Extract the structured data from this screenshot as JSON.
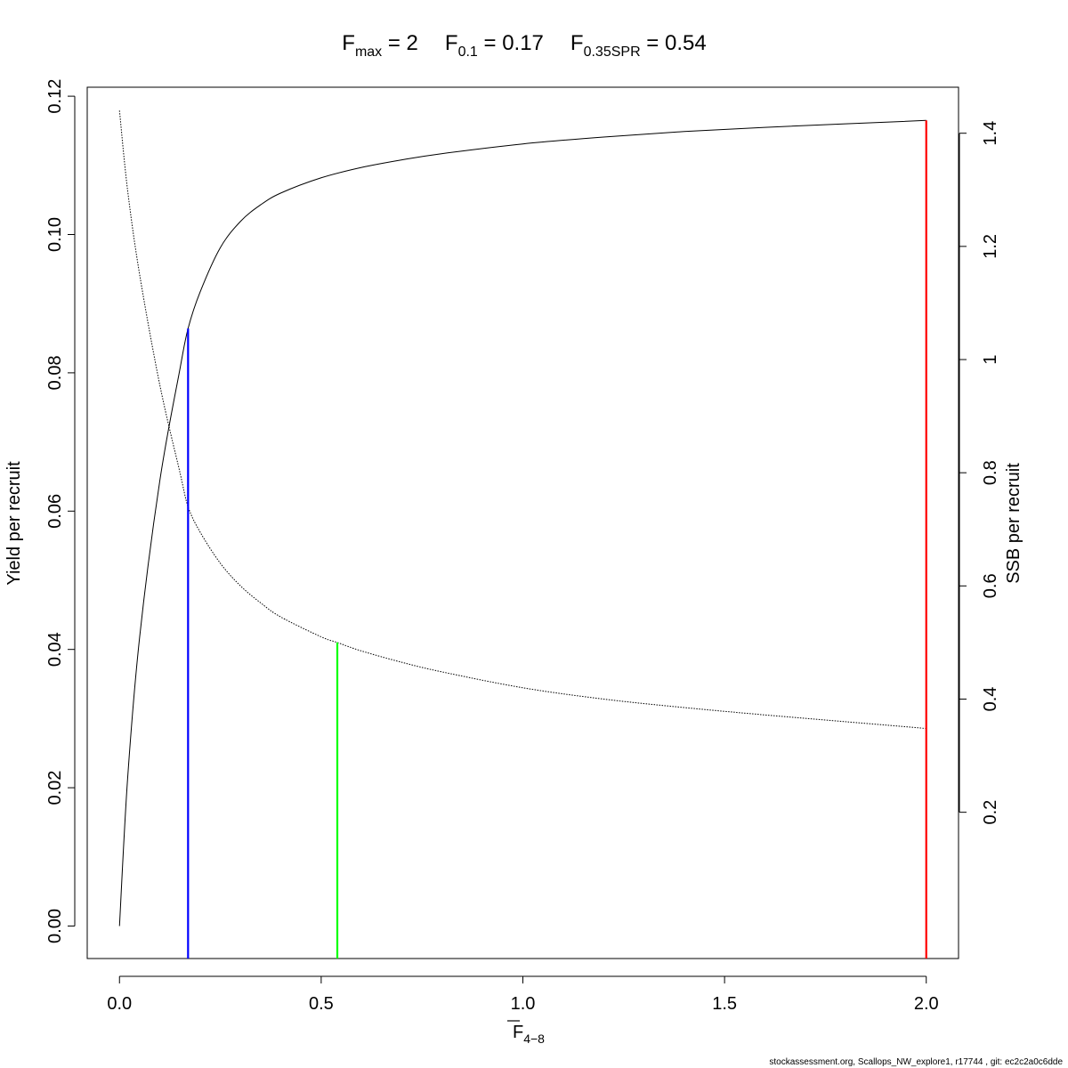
{
  "chart_data": {
    "type": "line",
    "title": {
      "fmax": {
        "main": "F",
        "sub": "max",
        "eq": " = ",
        "value": "2"
      },
      "f01": {
        "main": "F",
        "sub": "0.1",
        "eq": " = ",
        "value": "0.17"
      },
      "fspr": {
        "main": "F",
        "sub": "0.35SPR",
        "eq": " = ",
        "value": "0.54"
      }
    },
    "xlabel": {
      "main": "F",
      "sub": "4−8"
    },
    "ylabel_left": "Yield per recruit",
    "ylabel_right": "SSB per recruit",
    "xlim": [
      -0.08,
      2.08
    ],
    "ylim_left": [
      -0.0047,
      0.1213
    ],
    "ylim_right": [
      -0.0585,
      1.4813
    ],
    "x_ticks": [
      "0.0",
      "0.5",
      "1.0",
      "1.5",
      "2.0"
    ],
    "y_left_ticks": [
      "0.00",
      "0.02",
      "0.04",
      "0.06",
      "0.08",
      "0.10",
      "0.12"
    ],
    "y_right_ticks": [
      "0.2",
      "0.4",
      "0.6",
      "0.8",
      "1",
      "1.2",
      "1.4"
    ],
    "grid": false,
    "series": [
      {
        "name": "Yield per recruit",
        "axis": "left",
        "style": "solid",
        "color": "#000000",
        "x": [
          0,
          0.02,
          0.05,
          0.1,
          0.15,
          0.17,
          0.2,
          0.25,
          0.3,
          0.35,
          0.4,
          0.5,
          0.6,
          0.7,
          0.8,
          1.0,
          1.2,
          1.4,
          1.6,
          1.8,
          2.0
        ],
        "y": [
          0,
          0.0212,
          0.0418,
          0.0644,
          0.0806,
          0.0864,
          0.0917,
          0.0981,
          0.1019,
          0.1043,
          0.106,
          0.1082,
          0.1097,
          0.1108,
          0.1117,
          0.1131,
          0.1141,
          0.1149,
          0.1155,
          0.116,
          0.1165
        ]
      },
      {
        "name": "SSB per recruit",
        "axis": "right",
        "style": "dotted",
        "color": "#000000",
        "x": [
          0,
          0.02,
          0.05,
          0.1,
          0.15,
          0.17,
          0.2,
          0.25,
          0.3,
          0.35,
          0.4,
          0.5,
          0.54,
          0.6,
          0.7,
          0.8,
          1.0,
          1.2,
          1.4,
          1.6,
          1.8,
          2.0
        ],
        "y": [
          1.44,
          1.3,
          1.15,
          0.955,
          0.8,
          0.74,
          0.695,
          0.64,
          0.6,
          0.57,
          0.545,
          0.51,
          0.5,
          0.485,
          0.465,
          0.448,
          0.42,
          0.4,
          0.385,
          0.372,
          0.36,
          0.348
        ]
      }
    ],
    "reference_lines": [
      {
        "label": "F0.1",
        "x": 0.17,
        "y_top": 0.0864,
        "axis": "left",
        "color": "#0000ff"
      },
      {
        "label": "F0.35SPR",
        "x": 0.54,
        "y_top": 0.5,
        "axis": "right",
        "color": "#00ff00"
      },
      {
        "label": "Fmax",
        "x": 2.0,
        "y_top": 0.1165,
        "axis": "left",
        "color": "#ff0000"
      }
    ]
  },
  "footer": "stockassessment.org, Scallops_NW_explore1, r17744 , git: ec2c2a0c6dde"
}
